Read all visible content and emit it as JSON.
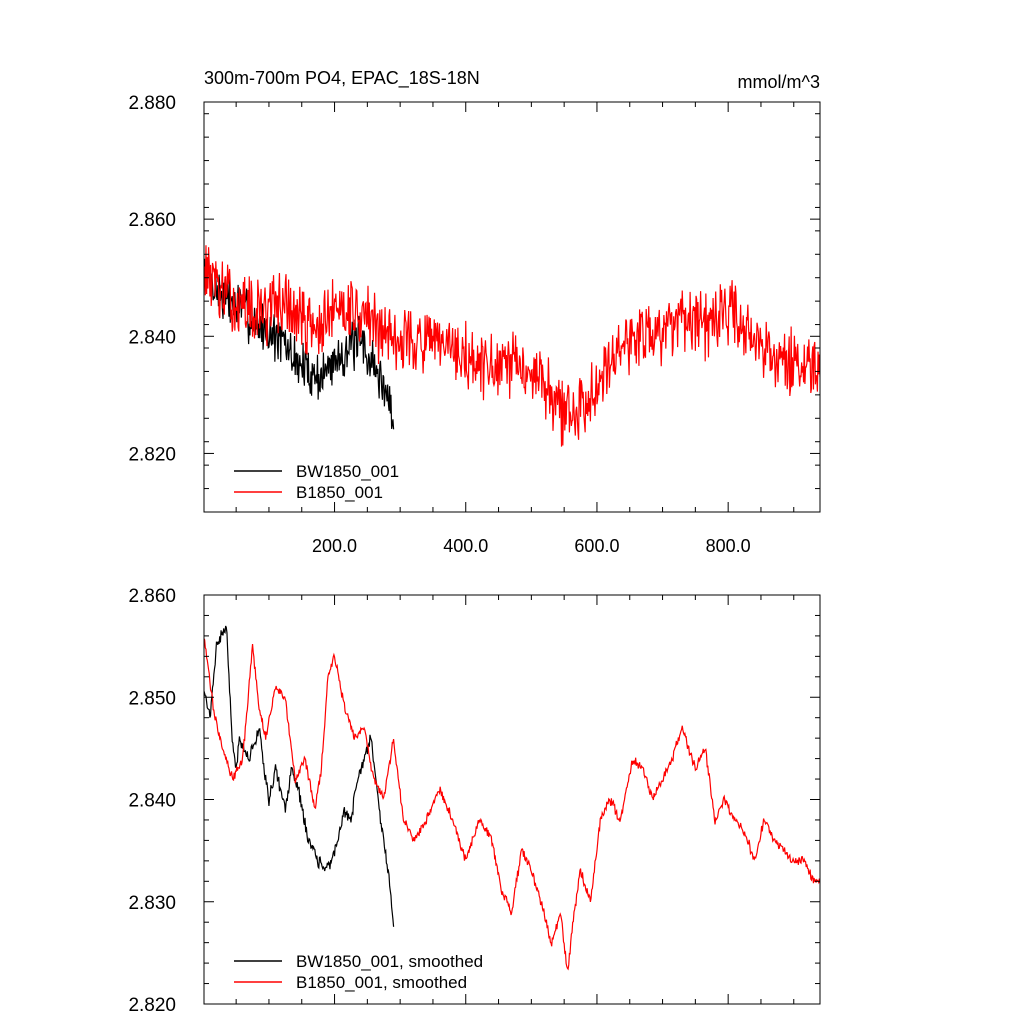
{
  "chart_data": [
    {
      "type": "line",
      "title_left": "300m-700m PO4, EPAC_18S-18N",
      "title_right": "mmol/m^3",
      "xlim": [
        1,
        940
      ],
      "ylim": [
        2.81,
        2.88
      ],
      "x_ticks": [
        200,
        400,
        600,
        800
      ],
      "x_tick_labels": [
        "200.0",
        "400.0",
        "600.0",
        "800.0"
      ],
      "y_ticks": [
        2.82,
        2.84,
        2.86,
        2.88
      ],
      "y_tick_labels": [
        "2.820",
        "2.840",
        "2.860",
        "2.880"
      ],
      "legend_position": "bottom-left",
      "series": [
        {
          "name": "BW1850_001",
          "color": "#000000",
          "x_range": [
            1,
            290
          ],
          "anchor_x": [
            1,
            20,
            40,
            60,
            80,
            100,
            120,
            140,
            160,
            180,
            200,
            220,
            240,
            260,
            280,
            290
          ],
          "anchor_y": [
            2.851,
            2.848,
            2.846,
            2.845,
            2.842,
            2.841,
            2.839,
            2.836,
            2.834,
            2.833,
            2.836,
            2.838,
            2.839,
            2.835,
            2.83,
            2.826
          ],
          "noise": 0.0065,
          "seed": 7
        },
        {
          "name": "B1850_001",
          "color": "#ff0000",
          "x_range": [
            1,
            940
          ],
          "anchor_x": [
            1,
            30,
            60,
            90,
            120,
            150,
            180,
            210,
            240,
            270,
            300,
            330,
            360,
            390,
            420,
            450,
            480,
            510,
            540,
            570,
            600,
            630,
            660,
            690,
            720,
            750,
            780,
            810,
            840,
            870,
            900,
            940
          ],
          "anchor_y": [
            2.852,
            2.847,
            2.845,
            2.844,
            2.846,
            2.843,
            2.841,
            2.846,
            2.844,
            2.841,
            2.84,
            2.839,
            2.838,
            2.837,
            2.835,
            2.834,
            2.835,
            2.834,
            2.828,
            2.826,
            2.833,
            2.838,
            2.84,
            2.841,
            2.842,
            2.841,
            2.843,
            2.844,
            2.84,
            2.837,
            2.835,
            2.833
          ],
          "noise": 0.0085,
          "seed": 13
        }
      ]
    },
    {
      "type": "line",
      "xlim": [
        1,
        940
      ],
      "ylim": [
        2.82,
        2.86
      ],
      "x_ticks": [
        200,
        400,
        600,
        800
      ],
      "y_ticks": [
        2.82,
        2.83,
        2.84,
        2.85,
        2.86
      ],
      "y_tick_labels": [
        "2.820",
        "2.830",
        "2.840",
        "2.850",
        "2.860"
      ],
      "legend_position": "bottom-left",
      "series": [
        {
          "name": "BW1850_001, smoothed",
          "color": "#000000",
          "x_range": [
            1,
            290
          ],
          "anchor_x": [
            1,
            10,
            20,
            35,
            45,
            50,
            55,
            70,
            85,
            95,
            100,
            110,
            125,
            135,
            145,
            160,
            175,
            185,
            195,
            205,
            215,
            225,
            235,
            245,
            255,
            260,
            268,
            275,
            282,
            290
          ],
          "anchor_y": [
            2.851,
            2.848,
            2.855,
            2.857,
            2.845,
            2.843,
            2.846,
            2.844,
            2.847,
            2.842,
            2.84,
            2.843,
            2.839,
            2.843,
            2.841,
            2.836,
            2.834,
            2.833,
            2.834,
            2.836,
            2.839,
            2.838,
            2.842,
            2.844,
            2.846,
            2.844,
            2.839,
            2.836,
            2.833,
            2.828
          ],
          "noise": 0.0009,
          "seed": 21
        },
        {
          "name": "B1850_001, smoothed",
          "color": "#ff0000",
          "x_range": [
            1,
            940
          ],
          "anchor_x": [
            1,
            15,
            30,
            45,
            60,
            75,
            85,
            95,
            110,
            125,
            140,
            155,
            170,
            180,
            190,
            200,
            215,
            230,
            245,
            260,
            275,
            290,
            305,
            320,
            340,
            360,
            380,
            400,
            420,
            440,
            455,
            470,
            485,
            500,
            515,
            530,
            545,
            555,
            565,
            575,
            590,
            605,
            620,
            635,
            655,
            670,
            685,
            700,
            715,
            730,
            750,
            765,
            780,
            795,
            810,
            825,
            840,
            855,
            870,
            885,
            900,
            915,
            930,
            940
          ],
          "anchor_y": [
            2.856,
            2.849,
            2.845,
            2.842,
            2.844,
            2.855,
            2.849,
            2.846,
            2.851,
            2.85,
            2.842,
            2.844,
            2.839,
            2.843,
            2.852,
            2.854,
            2.849,
            2.846,
            2.847,
            2.842,
            2.84,
            2.846,
            2.838,
            2.836,
            2.838,
            2.841,
            2.838,
            2.834,
            2.838,
            2.836,
            2.831,
            2.829,
            2.835,
            2.833,
            2.83,
            2.826,
            2.829,
            2.823,
            2.829,
            2.833,
            2.83,
            2.838,
            2.84,
            2.838,
            2.844,
            2.843,
            2.84,
            2.842,
            2.844,
            2.847,
            2.843,
            2.845,
            2.838,
            2.84,
            2.838,
            2.837,
            2.834,
            2.838,
            2.836,
            2.835,
            2.834,
            2.834,
            2.832,
            2.832
          ],
          "noise": 0.0007,
          "seed": 33
        }
      ]
    }
  ]
}
